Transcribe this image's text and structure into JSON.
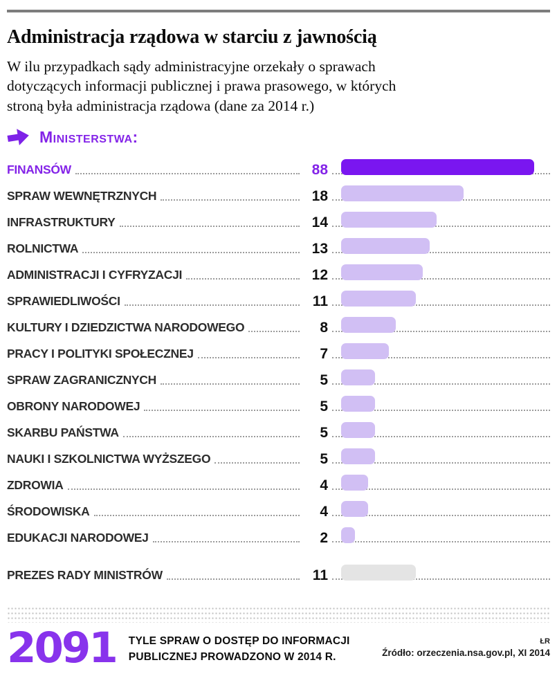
{
  "header": {
    "title": "Administracja rządowa  w starciu z jawnością",
    "subtitle_lines": [
      "W ilu przypadkach sądy administracyjne orzekały o sprawach",
      "dotyczących informacji publicznej i prawa prasowego, w których",
      "stroną była administracja rządowa (dane za 2014 r.)"
    ]
  },
  "section": {
    "label": "Ministerstwa:"
  },
  "chart_data": {
    "type": "bar",
    "orientation": "horizontal",
    "title": "Administracja rządowa w starciu z jawnością",
    "group_label": "Ministerstwa",
    "categories": [
      "FINANSÓW",
      "SPRAW WEWNĘTRZNYCH",
      "INFRASTRUKTURY",
      "ROLNICTWA",
      "ADMINISTRACJI I CYFRYZACJI",
      "SPRAWIEDLIWOŚCI",
      "KULTURY I DZIEDZICTWA NARODOWEGO",
      "PRACY I POLITYKI SPOŁECZNEJ",
      "SPRAW ZAGRANICZNYCH",
      "OBRONY NARODOWEJ",
      "SKARBU PAŃSTWA",
      "NAUKI I SZKOLNICTWA WYŻSZEGO",
      "ZDROWIA",
      "ŚRODOWISKA",
      "EDUKACJI NARODOWEJ"
    ],
    "values": [
      88,
      18,
      14,
      13,
      12,
      11,
      8,
      7,
      5,
      5,
      5,
      5,
      4,
      4,
      2
    ],
    "highlight_index": 0,
    "extra_row": {
      "label": "PREZES RADY MINISTRÓW",
      "value": 11
    },
    "value_labels": true,
    "legend": false,
    "grid": false
  },
  "footer": {
    "big_number": "2091",
    "caption_lines": [
      "TYLE SPRAW O DOSTĘP DO INFORMACJI",
      "PUBLICZNEJ PROWADZONO W 2014 R."
    ],
    "credit": "ŁR",
    "source": "Źródło: orzeczenia.nsa.gov.pl, XI 2014"
  },
  "colors": {
    "bar_highlight": "#7a16f0",
    "bar_default": "#d1bff4",
    "bar_muted": "#e4e4e4",
    "accent_text": "#8424e8",
    "big_number": "#8833ec",
    "top_rule": "#7d7d7d"
  }
}
